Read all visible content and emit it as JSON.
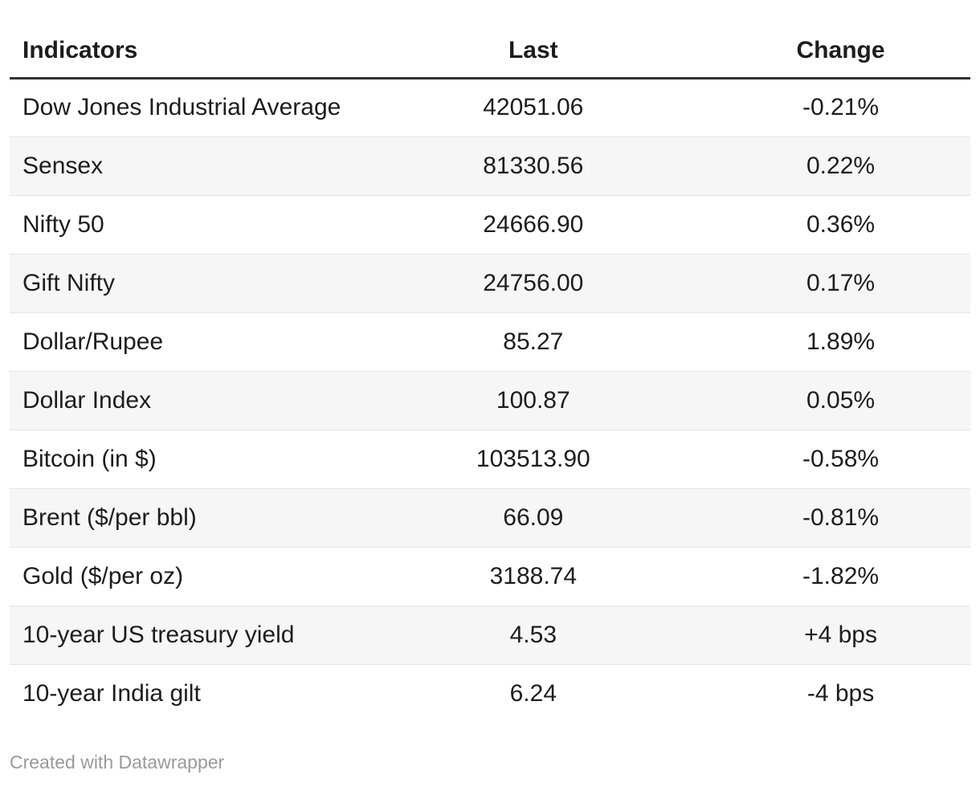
{
  "chart_data": {
    "type": "table",
    "columns": [
      {
        "key": "indicator",
        "label": "Indicators",
        "align": "left"
      },
      {
        "key": "last",
        "label": "Last",
        "align": "center"
      },
      {
        "key": "change",
        "label": "Change",
        "align": "center"
      }
    ],
    "rows": [
      {
        "indicator": "Dow Jones Industrial Average",
        "last": "42051.06",
        "change": "-0.21%"
      },
      {
        "indicator": "Sensex",
        "last": "81330.56",
        "change": "0.22%"
      },
      {
        "indicator": "Nifty 50",
        "last": "24666.90",
        "change": "0.36%"
      },
      {
        "indicator": "Gift Nifty",
        "last": "24756.00",
        "change": "0.17%"
      },
      {
        "indicator": "Dollar/Rupee",
        "last": "85.27",
        "change": "1.89%"
      },
      {
        "indicator": "Dollar Index",
        "last": "100.87",
        "change": "0.05%"
      },
      {
        "indicator": "Bitcoin (in $)",
        "last": "103513.90",
        "change": "-0.58%"
      },
      {
        "indicator": "Brent ($/per bbl)",
        "last": "66.09",
        "change": "-0.81%"
      },
      {
        "indicator": "Gold ($/per oz)",
        "last": "3188.74",
        "change": "-1.82%"
      },
      {
        "indicator": "10-year US treasury yield",
        "last": "4.53",
        "change": "+4 bps"
      },
      {
        "indicator": "10-year India gilt",
        "last": "6.24",
        "change": "-4 bps"
      }
    ],
    "layout": {
      "zebra_striping": true,
      "header_rule": "thick-dark",
      "legend_position": "none",
      "grid": "row-separators"
    }
  },
  "footer": {
    "attribution": "Created with Datawrapper"
  },
  "colors": {
    "text": "#1d1d1d",
    "header_rule": "#333333",
    "row_separator": "#e4e4e4",
    "stripe": "#f6f6f6",
    "background": "#ffffff",
    "attribution_text": "#9a9a9a"
  }
}
